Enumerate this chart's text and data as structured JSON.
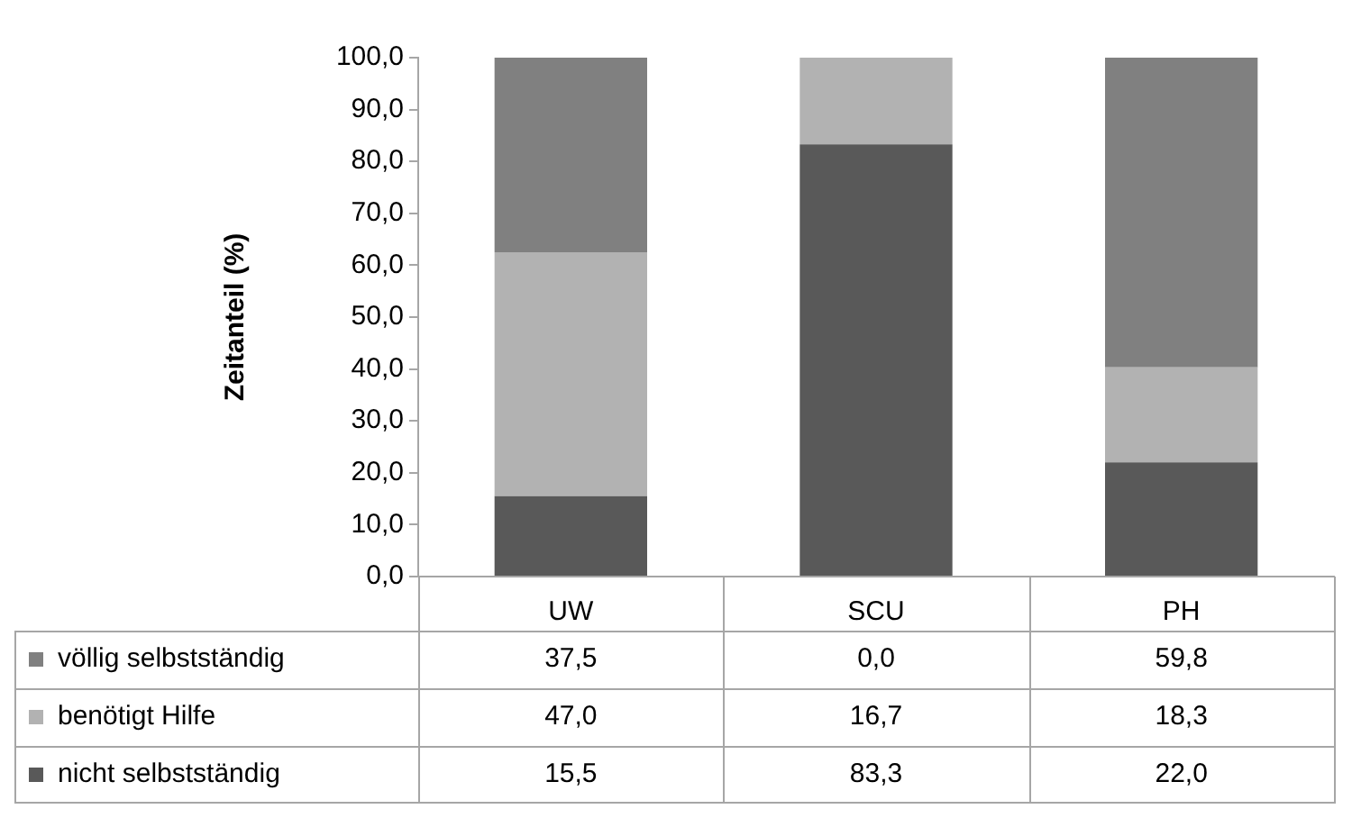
{
  "chart_data": {
    "type": "bar",
    "stacked": true,
    "ylabel": "Zeitanteil (%)",
    "categories": [
      "UW",
      "SCU",
      "PH"
    ],
    "series": [
      {
        "name": "nicht selbstständig",
        "color": "#595959",
        "values": [
          15.5,
          83.3,
          22.0
        ],
        "value_labels": [
          "15,5",
          "83,3",
          "22,0"
        ]
      },
      {
        "name": "benötigt Hilfe",
        "color": "#b2b2b2",
        "values": [
          47.0,
          16.7,
          18.3
        ],
        "value_labels": [
          "47,0",
          "16,7",
          "18,3"
        ]
      },
      {
        "name": "völlig selbstständig",
        "color": "#808080",
        "values": [
          37.5,
          0.0,
          59.8
        ],
        "value_labels": [
          "37,5",
          "0,0",
          "59,8"
        ]
      }
    ],
    "ylim": [
      0,
      100
    ],
    "yticks": [
      {
        "value": 0,
        "label": "0,0"
      },
      {
        "value": 10,
        "label": "10,0"
      },
      {
        "value": 20,
        "label": "20,0"
      },
      {
        "value": 30,
        "label": "30,0"
      },
      {
        "value": 40,
        "label": "40,0"
      },
      {
        "value": 50,
        "label": "50,0"
      },
      {
        "value": 60,
        "label": "60,0"
      },
      {
        "value": 70,
        "label": "70,0"
      },
      {
        "value": 80,
        "label": "80,0"
      },
      {
        "value": 90,
        "label": "90,0"
      },
      {
        "value": 100,
        "label": "100,0"
      }
    ],
    "grid": false,
    "legend": "bottom"
  }
}
